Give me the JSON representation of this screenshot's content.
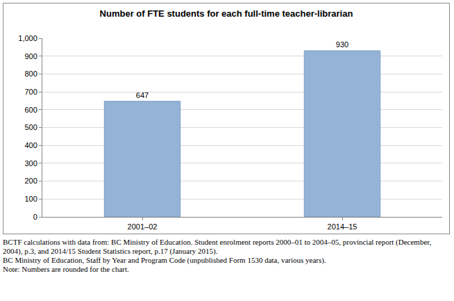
{
  "chart_data": {
    "type": "bar",
    "title": "Number of FTE students for each full-time teacher-librarian",
    "categories": [
      "2001–02",
      "2014–15"
    ],
    "values": [
      647,
      930
    ],
    "color": "#95b3d7",
    "ylim": [
      0,
      1000
    ],
    "yticks": [
      0,
      100,
      200,
      300,
      400,
      500,
      600,
      700,
      800,
      900,
      {
        "value": 1000,
        "label": "1,000"
      }
    ],
    "grid": true,
    "data_labels": true,
    "annotations": [
      "BCTF calculations with data from: BC Ministry of Education. Student enrolment reports 2000–01 to 2004–05, provincial report (December, 2004), p.3, and 2014/15 Student Statistics report, p.17 (January 2015).",
      "BC Ministry of Education, Staff by Year and Program Code (unpublished Form 1530 data, various years).",
      "Note: Numbers are rounded for the chart."
    ]
  }
}
